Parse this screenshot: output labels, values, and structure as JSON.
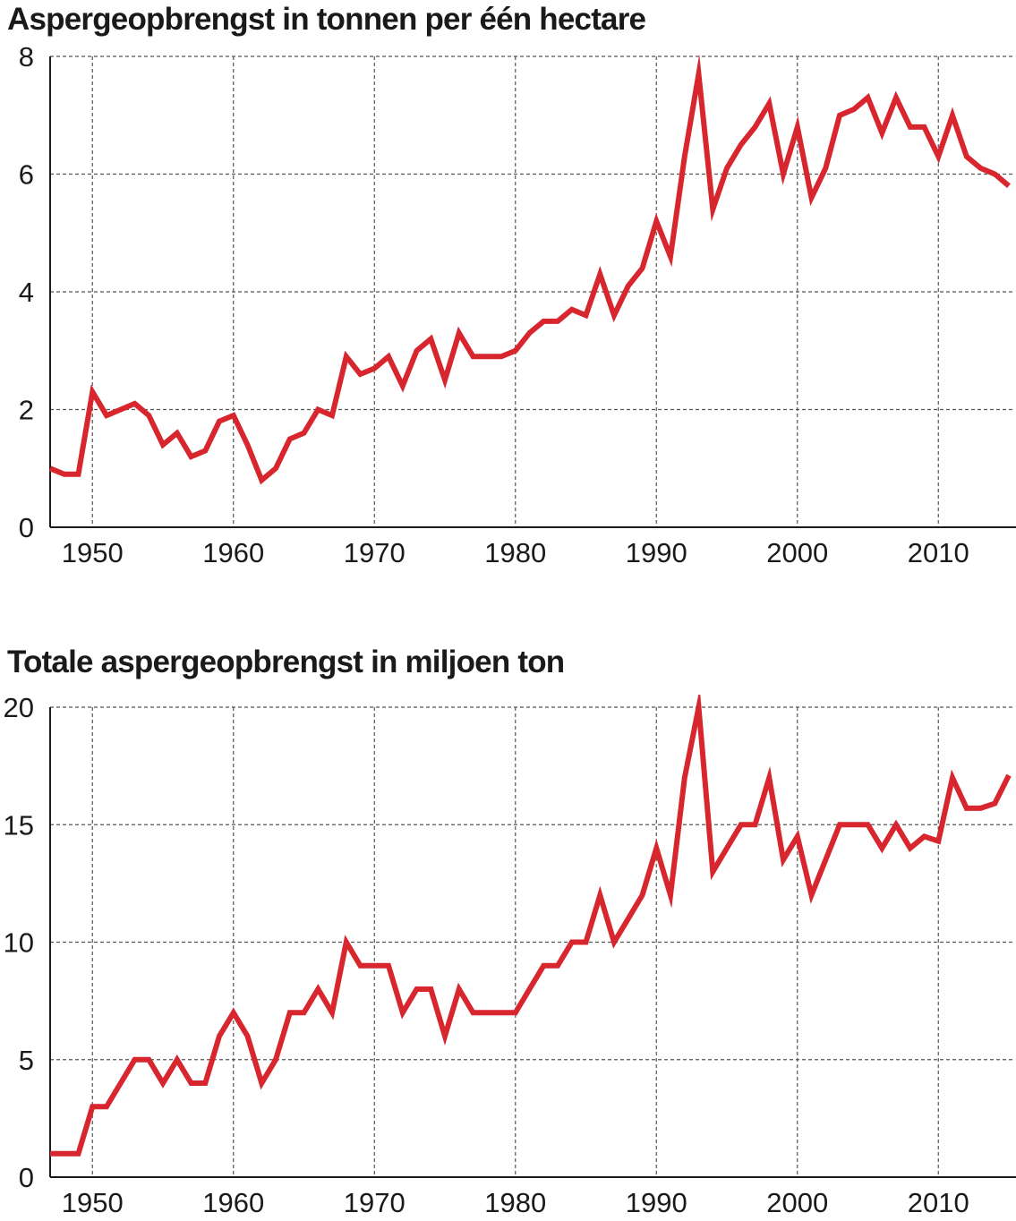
{
  "chart_data": [
    {
      "type": "line",
      "title": "Aspergeopbrengst in tonnen per één hectare",
      "xlabel": "",
      "ylabel": "",
      "xlim": [
        1947,
        2015
      ],
      "ylim": [
        0,
        8
      ],
      "x_ticks": [
        1950,
        1960,
        1970,
        1980,
        1990,
        2000,
        2010
      ],
      "y_ticks": [
        0,
        2,
        4,
        6,
        8
      ],
      "grid": true,
      "color": "#d7262e",
      "series": [
        {
          "x": [
            1947,
            1948,
            1949,
            1950,
            1951,
            1952,
            1953,
            1954,
            1955,
            1956,
            1957,
            1958,
            1959,
            1960,
            1961,
            1962,
            1963,
            1964,
            1965,
            1966,
            1967,
            1968,
            1969,
            1970,
            1971,
            1972,
            1973,
            1974,
            1975,
            1976,
            1977,
            1978,
            1979,
            1980,
            1981,
            1982,
            1983,
            1984,
            1985,
            1986,
            1987,
            1988,
            1989,
            1990,
            1991,
            1992,
            1993,
            1994,
            1995,
            1996,
            1997,
            1998,
            1999,
            2000,
            2001,
            2002,
            2003,
            2004,
            2005,
            2006,
            2007,
            2008,
            2009,
            2010,
            2011,
            2012,
            2013,
            2014,
            2015
          ],
          "y": [
            1.0,
            0.9,
            0.9,
            2.3,
            1.9,
            2.0,
            2.1,
            1.9,
            1.4,
            1.6,
            1.2,
            1.3,
            1.8,
            1.9,
            1.4,
            0.8,
            1.0,
            1.5,
            1.6,
            2.0,
            1.9,
            2.9,
            2.6,
            2.7,
            2.9,
            2.4,
            3.0,
            3.2,
            2.5,
            3.3,
            2.9,
            2.9,
            2.9,
            3.0,
            3.3,
            3.5,
            3.5,
            3.7,
            3.6,
            4.3,
            3.6,
            4.1,
            4.4,
            5.2,
            4.6,
            6.3,
            7.7,
            5.4,
            6.1,
            6.5,
            6.8,
            7.2,
            6.0,
            6.8,
            5.6,
            6.1,
            7.0,
            7.1,
            7.3,
            6.7,
            7.3,
            6.8,
            6.8,
            6.3,
            7.0,
            6.3,
            6.1,
            6.0,
            5.8
          ]
        }
      ]
    },
    {
      "type": "line",
      "title": "Totale aspergeopbrengst in miljoen ton",
      "xlabel": "",
      "ylabel": "",
      "xlim": [
        1947,
        2015
      ],
      "ylim": [
        0,
        20
      ],
      "x_ticks": [
        1950,
        1960,
        1970,
        1980,
        1990,
        2000,
        2010
      ],
      "y_ticks": [
        0,
        5,
        10,
        15,
        20
      ],
      "grid": true,
      "color": "#d7262e",
      "series": [
        {
          "x": [
            1947,
            1948,
            1949,
            1950,
            1951,
            1952,
            1953,
            1954,
            1955,
            1956,
            1957,
            1958,
            1959,
            1960,
            1961,
            1962,
            1963,
            1964,
            1965,
            1966,
            1967,
            1968,
            1969,
            1970,
            1971,
            1972,
            1973,
            1974,
            1975,
            1976,
            1977,
            1978,
            1979,
            1980,
            1981,
            1982,
            1983,
            1984,
            1985,
            1986,
            1987,
            1988,
            1989,
            1990,
            1991,
            1992,
            1993,
            1994,
            1995,
            1996,
            1997,
            1998,
            1999,
            2000,
            2001,
            2002,
            2003,
            2004,
            2005,
            2006,
            2007,
            2008,
            2009,
            2010,
            2011,
            2012,
            2013,
            2014,
            2015
          ],
          "y": [
            1,
            1,
            1,
            3,
            3,
            4,
            5,
            5,
            4,
            5,
            4,
            4,
            6,
            7,
            6,
            4,
            5,
            7,
            7,
            8,
            7,
            10,
            9,
            9,
            9,
            7,
            8,
            8,
            6,
            8,
            7,
            7,
            7,
            7,
            8,
            9,
            9,
            10,
            10,
            12,
            10,
            11,
            12,
            14,
            12,
            17,
            20,
            13,
            14,
            15,
            15,
            17,
            13.5,
            14.5,
            12,
            13.5,
            15,
            15,
            15,
            14,
            15,
            14,
            14.5,
            14.3,
            17,
            15.7,
            15.7,
            15.9,
            17.1
          ]
        }
      ]
    }
  ]
}
